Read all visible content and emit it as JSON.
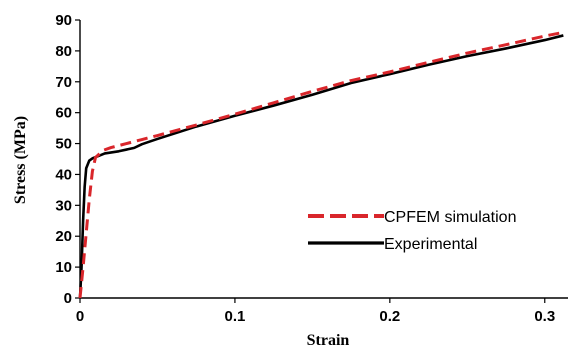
{
  "chart_data": {
    "type": "line",
    "xlabel": "Strain",
    "ylabel": "Stress (MPa)",
    "xlim": [
      0,
      0.315
    ],
    "ylim": [
      0,
      90
    ],
    "x_ticks": [
      0,
      0.1,
      0.2,
      0.3
    ],
    "x_tick_labels": [
      "0",
      "0.1",
      "0.2",
      "0.3"
    ],
    "y_ticks": [
      0,
      10,
      20,
      30,
      40,
      50,
      60,
      70,
      80,
      90
    ],
    "y_tick_labels": [
      "0",
      "10",
      "20",
      "30",
      "40",
      "50",
      "60",
      "70",
      "80",
      "90"
    ],
    "grid": false,
    "legend_position": "lower-right",
    "series": [
      {
        "name": "CPFEM simulation",
        "color": "#d9262b",
        "style": "dashed",
        "x": [
          0.0,
          0.002,
          0.004,
          0.006,
          0.008,
          0.01,
          0.015,
          0.02,
          0.03,
          0.04,
          0.05,
          0.075,
          0.1,
          0.125,
          0.15,
          0.175,
          0.2,
          0.225,
          0.25,
          0.275,
          0.3,
          0.312
        ],
        "y": [
          0.0,
          10.0,
          21.0,
          32.0,
          41.0,
          45.5,
          47.8,
          48.7,
          50.0,
          51.3,
          52.6,
          56.0,
          59.5,
          63.2,
          66.9,
          70.4,
          73.2,
          76.3,
          79.3,
          82.0,
          84.8,
          86.0
        ]
      },
      {
        "name": "Experimental",
        "color": "#000000",
        "style": "solid",
        "x": [
          0.0,
          0.001,
          0.002,
          0.003,
          0.004,
          0.006,
          0.008,
          0.012,
          0.016,
          0.025,
          0.035,
          0.04,
          0.05,
          0.075,
          0.1,
          0.125,
          0.15,
          0.175,
          0.2,
          0.225,
          0.25,
          0.275,
          0.3,
          0.312
        ],
        "y": [
          0.0,
          10.0,
          25.0,
          36.0,
          42.0,
          44.5,
          45.2,
          46.0,
          46.8,
          47.5,
          48.6,
          49.8,
          51.5,
          55.5,
          59.0,
          62.3,
          65.8,
          69.6,
          72.5,
          75.5,
          78.3,
          80.8,
          83.5,
          85.0
        ]
      }
    ]
  }
}
